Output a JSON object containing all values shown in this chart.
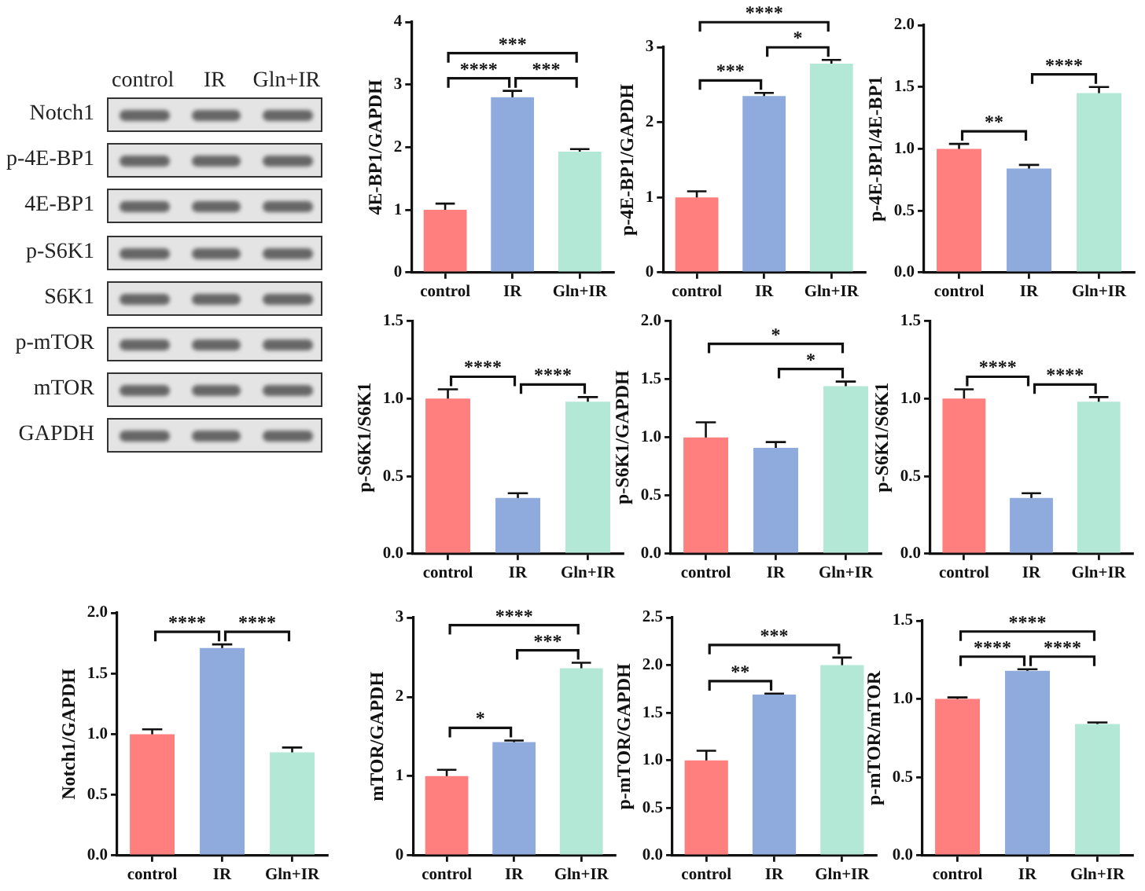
{
  "chart_data": [
    {
      "type": "other",
      "categories": [
        "control",
        "IR",
        "Gln+IR"
      ],
      "y_categories": [
        "Notch1",
        "p-4E-BP1",
        "4E-BP1",
        "p-S6K1",
        "S6K1",
        "p-mTOR",
        "mTOR",
        "GAPDH"
      ]
    },
    {
      "type": "bar",
      "ylabel": "4E-BP1/GAPDH",
      "categories": [
        "control",
        "IR",
        "Gln+IR"
      ],
      "values": [
        1.0,
        2.8,
        1.93
      ],
      "errors": [
        0.1,
        0.1,
        0.04
      ],
      "colors": [
        "#ff7f7f",
        "#8faadc",
        "#b3e8d6"
      ],
      "ylim": [
        0,
        4
      ],
      "yticks": [
        0,
        1,
        2,
        3,
        4
      ],
      "annotations": [
        "***",
        "****",
        "***"
      ]
    },
    {
      "type": "bar",
      "ylabel": "p-4E-BP1/GAPDH",
      "categories": [
        "control",
        "IR",
        "Gln+IR"
      ],
      "values": [
        1.0,
        2.35,
        2.78
      ],
      "errors": [
        0.08,
        0.04,
        0.05
      ],
      "colors": [
        "#ff7f7f",
        "#8faadc",
        "#b3e8d6"
      ],
      "ylim": [
        0,
        3
      ],
      "yticks": [
        0,
        1,
        2,
        3
      ],
      "annotations": [
        "****",
        "***",
        {
          "text": "*",
          "x": "Gln+IR",
          "y": 2.78
        }
      ]
    },
    {
      "type": "bar",
      "ylabel": "p-4E-BP1/4E-BP1",
      "categories": [
        "control",
        "IR",
        "Gln+IR"
      ],
      "values": [
        1.0,
        0.84,
        1.45
      ],
      "errors": [
        0.04,
        0.03,
        0.05
      ],
      "colors": [
        "#ff7f7f",
        "#8faadc",
        "#b3e8d6"
      ],
      "ylim": [
        0,
        2
      ],
      "yticks": [
        {
          "value": 0,
          "label": "0.0"
        },
        0.5,
        {
          "value": 1,
          "label": "1.0"
        },
        1.5,
        {
          "value": 2,
          "label": "2.0"
        }
      ],
      "annotations": [
        "**",
        "****"
      ]
    },
    {
      "type": "bar",
      "ylabel": "p-S6K1/S6K1",
      "categories": [
        "control",
        "IR",
        "Gln+IR"
      ],
      "values": [
        1.0,
        0.36,
        0.98
      ],
      "errors": [
        0.06,
        0.03,
        0.03
      ],
      "colors": [
        "#ff7f7f",
        "#8faadc",
        "#b3e8d6"
      ],
      "ylim": [
        0,
        1.5
      ],
      "yticks": [
        {
          "value": 0,
          "label": "0.0"
        },
        0.5,
        {
          "value": 1,
          "label": "1.0"
        },
        1.5
      ],
      "annotations": [
        "****",
        {
          "text": "****",
          "x": "Gln+IR",
          "y": 0.98
        }
      ]
    },
    {
      "type": "bar",
      "ylabel": "p-S6K1/GAPDH",
      "categories": [
        "control",
        "IR",
        "Gln+IR"
      ],
      "values": [
        1.0,
        0.91,
        1.44
      ],
      "errors": [
        0.13,
        0.05,
        0.04
      ],
      "colors": [
        "#ff7f7f",
        "#8faadc",
        "#b3e8d6"
      ],
      "ylim": [
        0,
        2
      ],
      "yticks": [
        {
          "value": 0,
          "label": "0.0"
        },
        0.5,
        {
          "value": 1,
          "label": "1.0"
        },
        1.5,
        {
          "value": 2,
          "label": "2.0"
        }
      ],
      "annotations": [
        "*",
        "*"
      ]
    },
    {
      "type": "bar",
      "ylabel": "p-S6K1/S6K1",
      "categories": [
        "control",
        "IR",
        "Gln+IR"
      ],
      "values": [
        1.0,
        0.36,
        0.98
      ],
      "errors": [
        0.06,
        0.03,
        0.03
      ],
      "colors": [
        "#ff7f7f",
        "#8faadc",
        "#b3e8d6"
      ],
      "ylim": [
        0,
        1.5
      ],
      "yticks": [
        {
          "value": 0,
          "label": "0.0"
        },
        0.5,
        {
          "value": 1,
          "label": "1.0"
        },
        1.5
      ],
      "annotations": [
        "****",
        {
          "text": "****",
          "x": "Gln+IR",
          "y": 0.98
        }
      ]
    },
    {
      "type": "bar",
      "ylabel": "Notch1/GAPDH",
      "categories": [
        "control",
        "IR",
        "Gln+IR"
      ],
      "values": [
        1.0,
        1.71,
        0.85
      ],
      "errors": [
        0.04,
        0.03,
        0.04
      ],
      "colors": [
        "#ff7f7f",
        "#8faadc",
        "#b3e8d6"
      ],
      "ylim": [
        0,
        2
      ],
      "yticks": [
        {
          "value": 0,
          "label": "0.0"
        },
        0.5,
        {
          "value": 1,
          "label": "1.0"
        },
        1.5,
        {
          "value": 2,
          "label": "2.0"
        }
      ],
      "annotations": [
        "****",
        "****"
      ]
    },
    {
      "type": "bar",
      "ylabel": "mTOR/GAPDH",
      "categories": [
        "control",
        "IR",
        "Gln+IR"
      ],
      "values": [
        1.0,
        1.43,
        2.36
      ],
      "errors": [
        0.08,
        0.02,
        0.07
      ],
      "colors": [
        "#ff7f7f",
        "#8faadc",
        "#b3e8d6"
      ],
      "ylim": [
        0,
        3
      ],
      "yticks": [
        0,
        1,
        2,
        3
      ],
      "annotations": [
        "****",
        "***",
        "*"
      ]
    },
    {
      "type": "bar",
      "ylabel": "p-mTOR/GAPDH",
      "categories": [
        "control",
        "IR",
        "Gln+IR"
      ],
      "values": [
        1.0,
        1.69,
        2.0
      ],
      "errors": [
        0.1,
        0.01,
        0.08
      ],
      "colors": [
        "#ff7f7f",
        "#8faadc",
        "#b3e8d6"
      ],
      "ylim": [
        0,
        2.5
      ],
      "yticks": [
        {
          "value": 0,
          "label": "0.0"
        },
        0.5,
        {
          "value": 1,
          "label": "1.0"
        },
        1.5,
        {
          "value": 2,
          "label": "2.0"
        },
        2.5
      ],
      "annotations": [
        "***",
        "**"
      ]
    },
    {
      "type": "bar",
      "ylabel": "p-mTOR/mTOR",
      "categories": [
        "control",
        "IR",
        "Gln+IR"
      ],
      "values": [
        1.0,
        1.18,
        0.84
      ],
      "errors": [
        0.01,
        0.01,
        0.01
      ],
      "colors": [
        "#ff7f7f",
        "#8faadc",
        "#b3e8d6"
      ],
      "ylim": [
        0,
        1.5
      ],
      "yticks": [
        {
          "value": 0,
          "label": "0.0"
        },
        0.5,
        {
          "value": 1,
          "label": "1.0"
        },
        1.5
      ],
      "annotations": [
        "****",
        "****",
        "****"
      ]
    }
  ]
}
